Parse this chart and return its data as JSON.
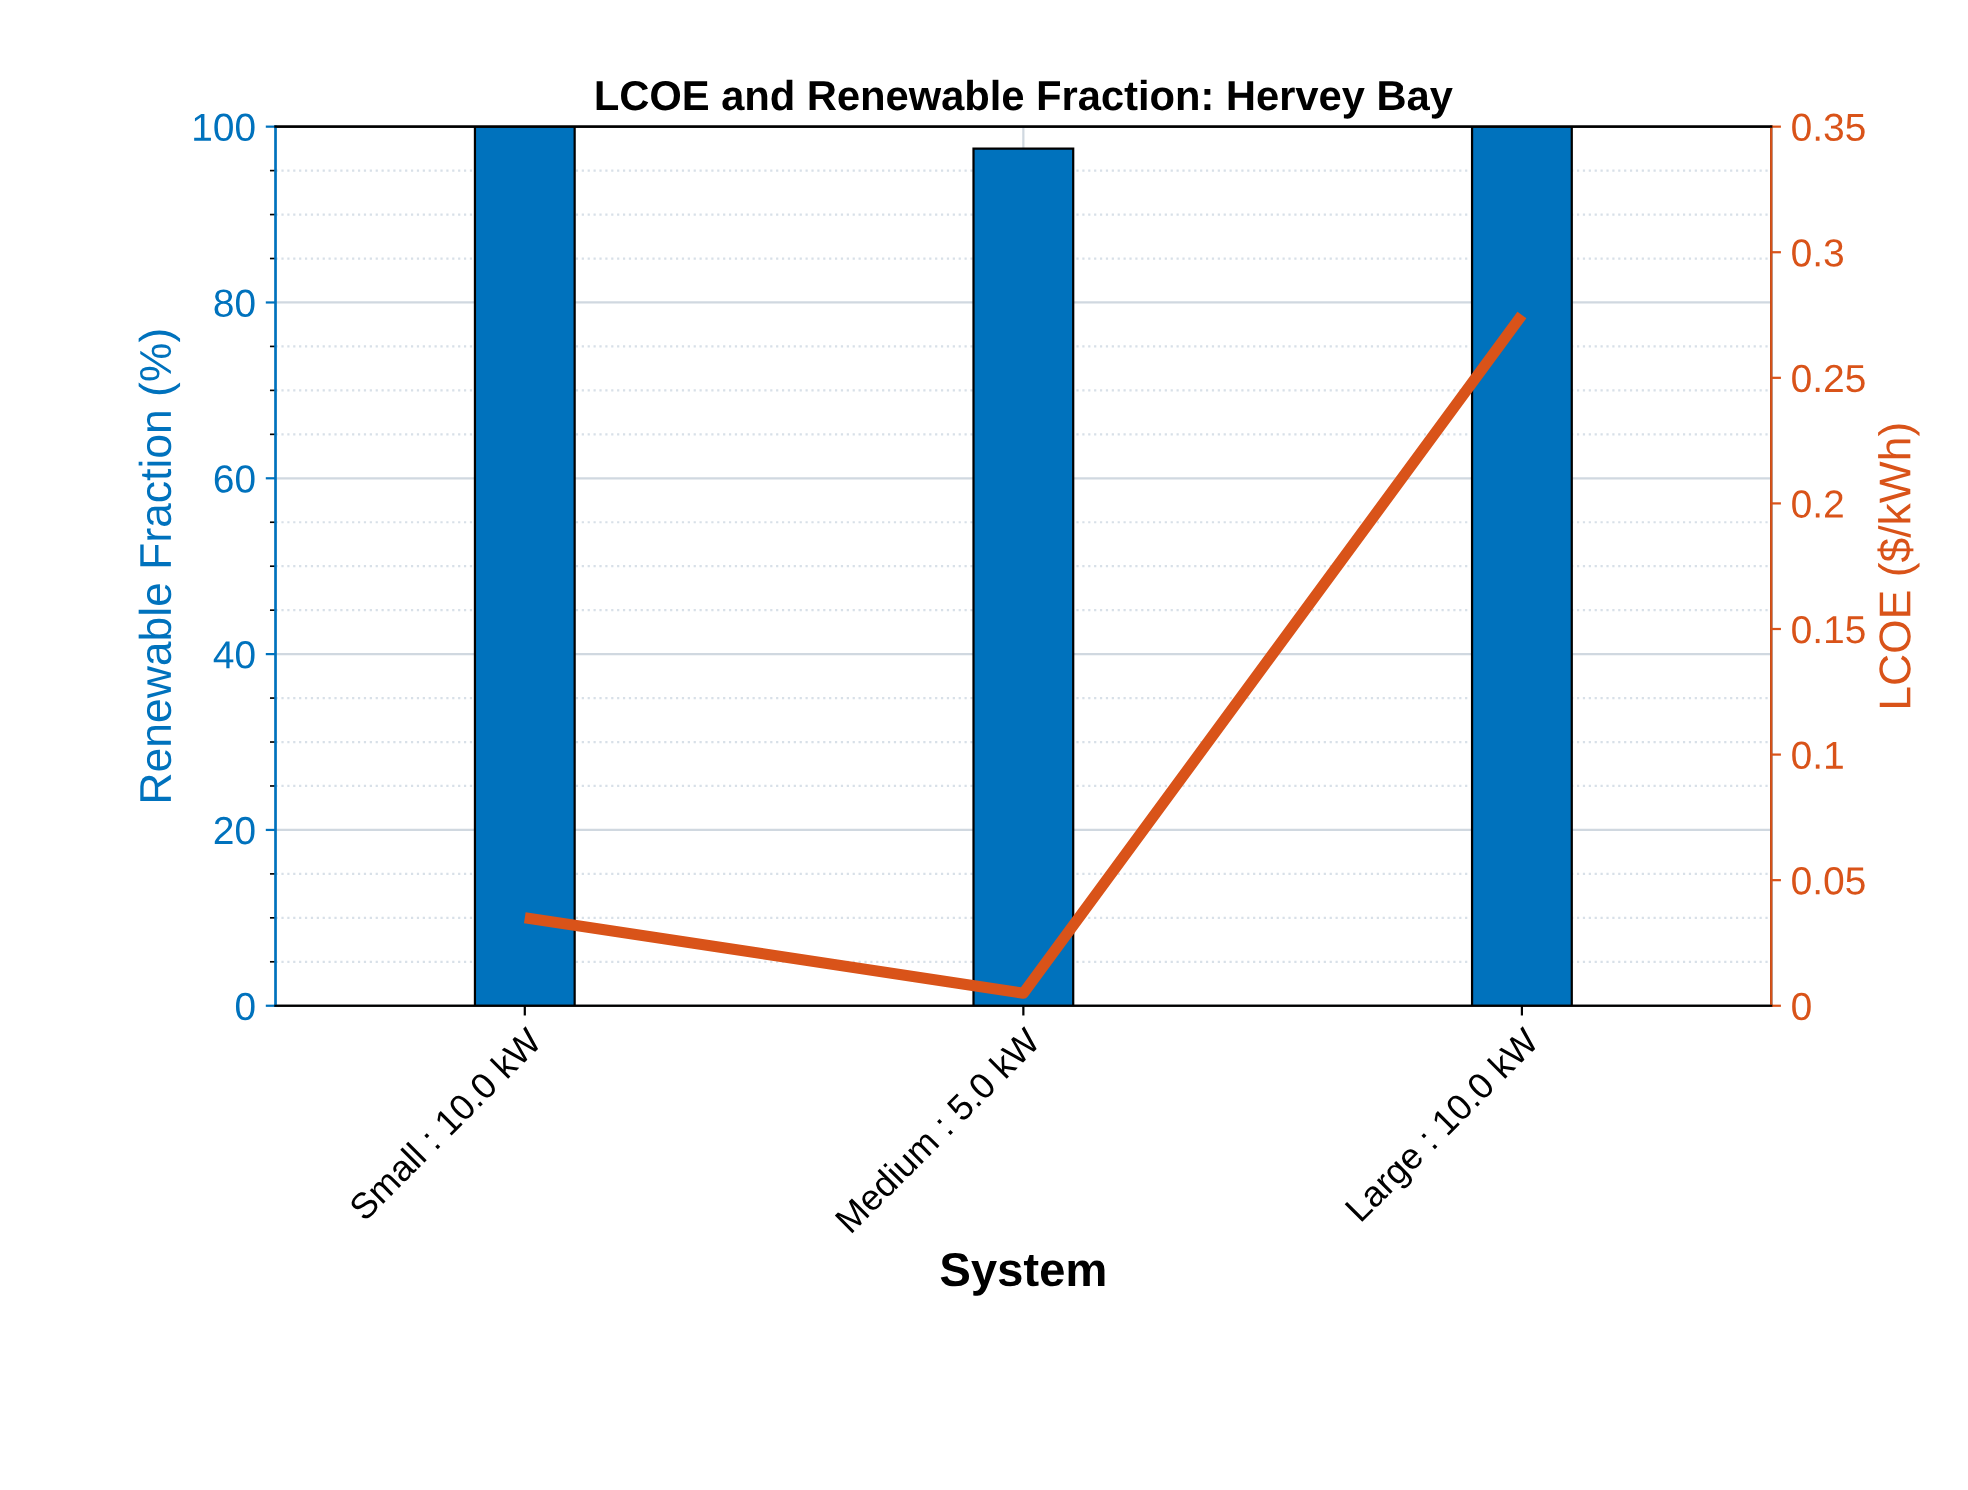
{
  "chart_data": {
    "type": "bar",
    "title": "LCOE and Renewable Fraction: Hervey Bay",
    "xlabel": "System",
    "ylabel": "Renewable Fraction (%)",
    "y2label": "LCOE ($/kWh)",
    "categories": [
      "Small : 10.0 kW",
      "Medium : 5.0 kW",
      "Large : 10.0 kW"
    ],
    "series": [
      {
        "color": "#0072bd",
        "values": [
          100,
          97.5,
          100
        ]
      },
      {
        "type": "line",
        "axis": "y2",
        "color": "#d95319",
        "values": [
          0.035,
          0.005,
          0.275
        ]
      }
    ],
    "ylim": [
      0,
      100
    ],
    "yticks": [
      0,
      20,
      40,
      60,
      80,
      100
    ],
    "y2lim": [
      0,
      0.35
    ],
    "y2ticks": [
      0,
      0.05,
      0.1,
      0.15,
      0.2,
      0.25,
      0.3,
      0.35
    ],
    "grid": true
  }
}
